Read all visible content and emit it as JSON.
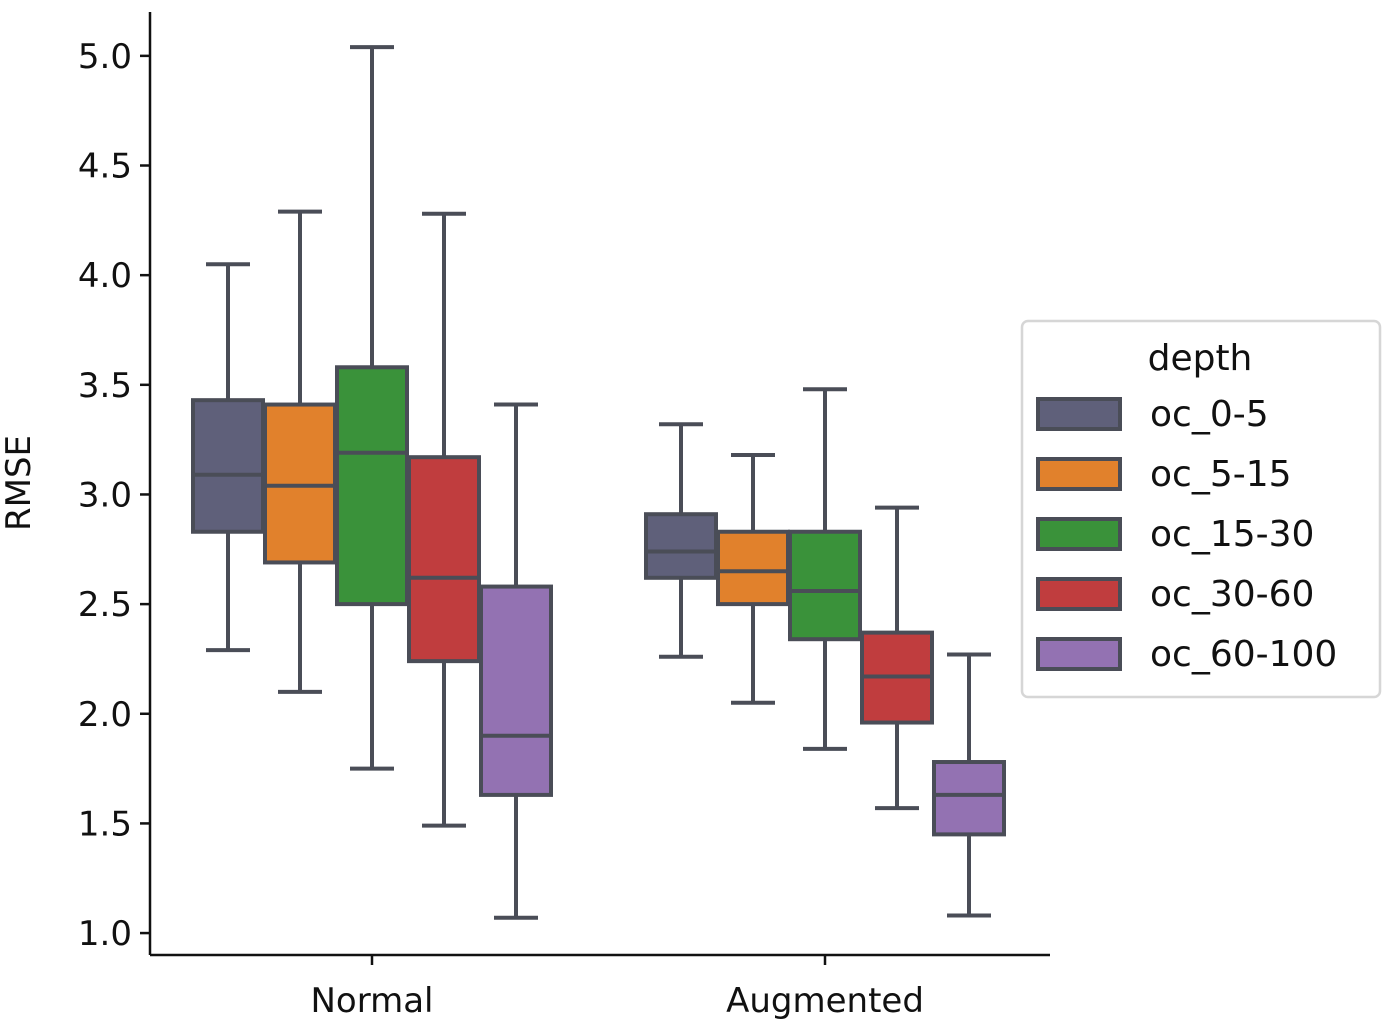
{
  "chart_data": {
    "type": "box",
    "categories": [
      "Normal",
      "Augmented"
    ],
    "ylabel": "RMSE",
    "xlabel": "",
    "ylim": [
      0.9,
      5.2
    ],
    "yticks": [
      "1.0",
      "1.5",
      "2.0",
      "2.5",
      "3.0",
      "3.5",
      "4.0",
      "4.5",
      "5.0"
    ],
    "legend": {
      "title": "depth",
      "position": "right"
    },
    "series": [
      {
        "name": "oc_0-5",
        "color": "#5f607a",
        "boxes": [
          {
            "category": "Normal",
            "min": 2.29,
            "q1": 2.83,
            "median": 3.09,
            "q3": 3.43,
            "max": 4.05
          },
          {
            "category": "Augmented",
            "min": 2.26,
            "q1": 2.62,
            "median": 2.74,
            "q3": 2.91,
            "max": 3.32
          }
        ]
      },
      {
        "name": "oc_5-15",
        "color": "#e1812c",
        "boxes": [
          {
            "category": "Normal",
            "min": 2.1,
            "q1": 2.69,
            "median": 3.04,
            "q3": 3.41,
            "max": 4.29
          },
          {
            "category": "Augmented",
            "min": 2.05,
            "q1": 2.5,
            "median": 2.65,
            "q3": 2.83,
            "max": 3.18
          }
        ]
      },
      {
        "name": "oc_15-30",
        "color": "#3a923a",
        "boxes": [
          {
            "category": "Normal",
            "min": 1.75,
            "q1": 2.5,
            "median": 3.19,
            "q3": 3.58,
            "max": 5.04
          },
          {
            "category": "Augmented",
            "min": 1.84,
            "q1": 2.34,
            "median": 2.56,
            "q3": 2.83,
            "max": 3.48
          }
        ]
      },
      {
        "name": "oc_30-60",
        "color": "#c03d3e",
        "boxes": [
          {
            "category": "Normal",
            "min": 1.49,
            "q1": 2.24,
            "median": 2.62,
            "q3": 3.17,
            "max": 4.28
          },
          {
            "category": "Augmented",
            "min": 1.57,
            "q1": 1.96,
            "median": 2.17,
            "q3": 2.37,
            "max": 2.94
          }
        ]
      },
      {
        "name": "oc_60-100",
        "color": "#9372b2",
        "boxes": [
          {
            "category": "Normal",
            "min": 1.07,
            "q1": 1.63,
            "median": 1.9,
            "q3": 2.58,
            "max": 3.41
          },
          {
            "category": "Augmented",
            "min": 1.08,
            "q1": 1.45,
            "median": 1.63,
            "q3": 1.78,
            "max": 2.27
          }
        ]
      }
    ],
    "grid": false
  }
}
